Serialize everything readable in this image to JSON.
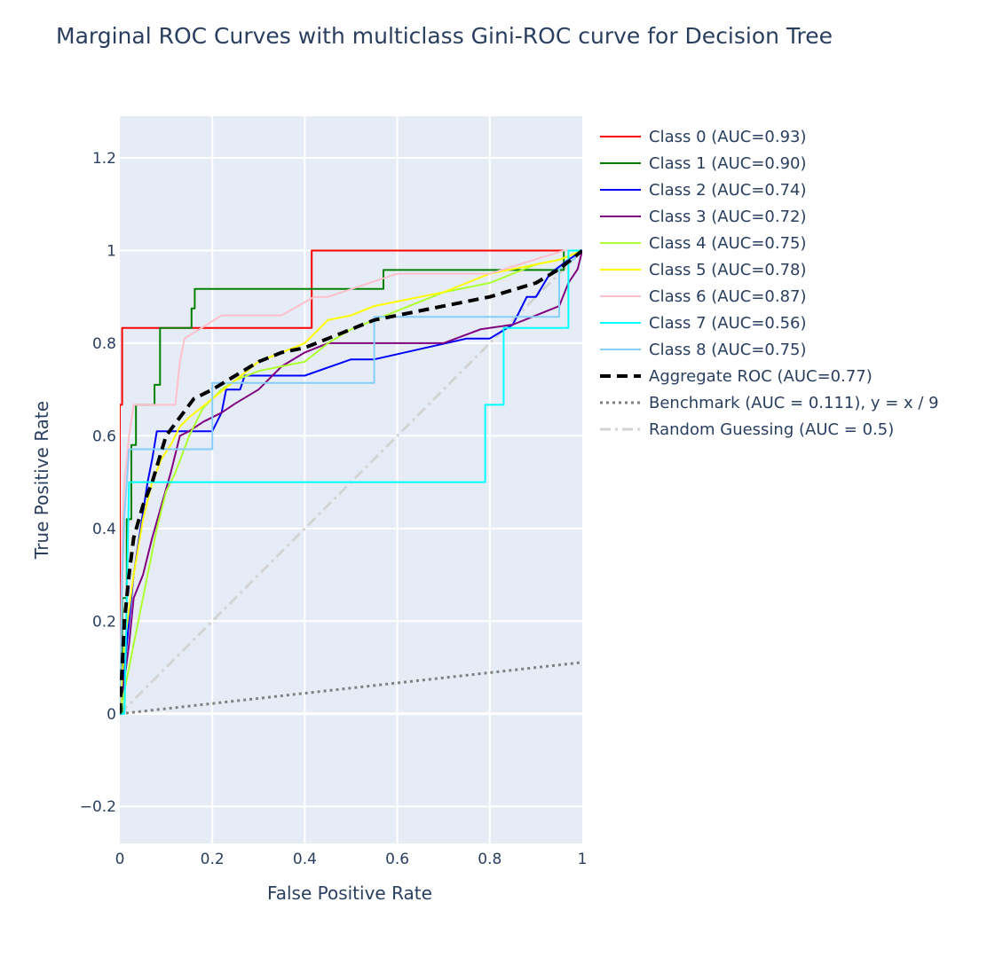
{
  "chart_data": {
    "type": "line",
    "title": "Marginal ROC Curves with multiclass Gini-ROC curve for Decision Tree",
    "xlabel": "False Positive Rate",
    "ylabel": "True Positive Rate",
    "xlim": [
      0,
      1
    ],
    "ylim": [
      -0.28,
      1.29
    ],
    "xticks": [
      0,
      0.2,
      0.4,
      0.6,
      0.8,
      1
    ],
    "xtick_labels": [
      "0",
      "0.2",
      "0.4",
      "0.6",
      "0.8",
      "1"
    ],
    "yticks": [
      -0.2,
      0,
      0.2,
      0.4,
      0.6,
      0.8,
      1,
      1.2
    ],
    "ytick_labels": [
      "−0.2",
      "0",
      "0.2",
      "0.4",
      "0.6",
      "0.8",
      "1",
      "1.2"
    ],
    "grid": true,
    "legend_position": "right",
    "series": [
      {
        "name": "Class 0 (AUC=0.93)",
        "color": "#ff0000",
        "dash": "solid",
        "width": 2,
        "x": [
          0,
          0,
          0.005,
          0.005,
          0.415,
          0.415,
          0.89,
          0.89,
          1
        ],
        "y": [
          0,
          0.667,
          0.667,
          0.833,
          0.833,
          1,
          1,
          1,
          1
        ]
      },
      {
        "name": "Class 1 (AUC=0.90)",
        "color": "#008000",
        "dash": "solid",
        "width": 2,
        "x": [
          0,
          0.005,
          0.005,
          0.015,
          0.015,
          0.025,
          0.025,
          0.035,
          0.035,
          0.075,
          0.075,
          0.087,
          0.087,
          0.155,
          0.155,
          0.162,
          0.162,
          0.57,
          0.57,
          0.96,
          0.96,
          1
        ],
        "y": [
          0,
          0,
          0.25,
          0.25,
          0.42,
          0.42,
          0.58,
          0.58,
          0.667,
          0.667,
          0.71,
          0.71,
          0.833,
          0.833,
          0.875,
          0.875,
          0.917,
          0.917,
          0.958,
          0.958,
          1,
          1
        ]
      },
      {
        "name": "Class 2 (AUC=0.74)",
        "color": "#0000ff",
        "dash": "solid",
        "width": 2,
        "x": [
          0,
          0.01,
          0.02,
          0.03,
          0.045,
          0.06,
          0.07,
          0.08,
          0.1,
          0.15,
          0.2,
          0.22,
          0.23,
          0.26,
          0.27,
          0.4,
          0.5,
          0.55,
          0.75,
          0.8,
          0.85,
          0.88,
          0.9,
          0.93,
          0.97,
          1
        ],
        "y": [
          0,
          0.1,
          0.2,
          0.3,
          0.4,
          0.5,
          0.55,
          0.61,
          0.61,
          0.61,
          0.61,
          0.65,
          0.7,
          0.7,
          0.73,
          0.73,
          0.765,
          0.765,
          0.81,
          0.81,
          0.84,
          0.9,
          0.9,
          0.95,
          0.98,
          1
        ]
      },
      {
        "name": "Class 3 (AUC=0.72)",
        "color": "#800080",
        "dash": "solid",
        "width": 2,
        "x": [
          0,
          0.02,
          0.03,
          0.05,
          0.07,
          0.09,
          0.11,
          0.13,
          0.15,
          0.18,
          0.22,
          0.25,
          0.3,
          0.35,
          0.4,
          0.45,
          0.5,
          0.54,
          0.6,
          0.7,
          0.78,
          0.85,
          0.9,
          0.95,
          0.97,
          0.99,
          1
        ],
        "y": [
          0,
          0.15,
          0.25,
          0.3,
          0.38,
          0.45,
          0.52,
          0.6,
          0.61,
          0.63,
          0.65,
          0.67,
          0.7,
          0.75,
          0.78,
          0.8,
          0.8,
          0.8,
          0.8,
          0.8,
          0.83,
          0.84,
          0.86,
          0.88,
          0.93,
          0.96,
          1
        ]
      },
      {
        "name": "Class 4 (AUC=0.75)",
        "color": "#adff2f",
        "dash": "solid",
        "width": 2,
        "x": [
          0,
          0.02,
          0.04,
          0.06,
          0.08,
          0.1,
          0.12,
          0.15,
          0.18,
          0.22,
          0.25,
          0.3,
          0.35,
          0.4,
          0.45,
          0.5,
          0.55,
          0.6,
          0.65,
          0.7,
          0.75,
          0.8,
          0.85,
          0.9,
          0.95,
          1
        ],
        "y": [
          0,
          0.1,
          0.2,
          0.3,
          0.4,
          0.48,
          0.52,
          0.6,
          0.66,
          0.7,
          0.72,
          0.74,
          0.75,
          0.76,
          0.8,
          0.83,
          0.85,
          0.87,
          0.89,
          0.91,
          0.92,
          0.93,
          0.95,
          0.97,
          0.98,
          1
        ]
      },
      {
        "name": "Class 5 (AUC=0.78)",
        "color": "#ffff00",
        "dash": "solid",
        "width": 2,
        "x": [
          0,
          0.01,
          0.03,
          0.05,
          0.07,
          0.09,
          0.11,
          0.13,
          0.15,
          0.2,
          0.25,
          0.3,
          0.35,
          0.4,
          0.45,
          0.5,
          0.55,
          0.6,
          0.65,
          0.7,
          0.75,
          0.8,
          0.85,
          0.9,
          0.95,
          1
        ],
        "y": [
          0,
          0.15,
          0.3,
          0.42,
          0.5,
          0.55,
          0.58,
          0.62,
          0.64,
          0.68,
          0.72,
          0.76,
          0.78,
          0.8,
          0.85,
          0.86,
          0.88,
          0.89,
          0.9,
          0.91,
          0.93,
          0.95,
          0.96,
          0.97,
          0.98,
          1
        ]
      },
      {
        "name": "Class 6 (AUC=0.87)",
        "color": "#ffc0cb",
        "dash": "solid",
        "width": 2,
        "x": [
          0,
          0.005,
          0.01,
          0.02,
          0.03,
          0.06,
          0.12,
          0.13,
          0.14,
          0.22,
          0.3,
          0.35,
          0.42,
          0.45,
          0.6,
          0.65,
          0.8,
          0.96,
          1
        ],
        "y": [
          0,
          0.4,
          0.5,
          0.6,
          0.667,
          0.667,
          0.667,
          0.76,
          0.81,
          0.86,
          0.86,
          0.86,
          0.9,
          0.9,
          0.95,
          0.95,
          0.95,
          1,
          1
        ]
      },
      {
        "name": "Class 7 (AUC=0.56)",
        "color": "#00ffff",
        "dash": "solid",
        "width": 2,
        "x": [
          0,
          0.01,
          0.02,
          0.02,
          0.79,
          0.79,
          0.83,
          0.83,
          0.97,
          0.97,
          1
        ],
        "y": [
          0,
          0,
          0.5,
          0.5,
          0.5,
          0.667,
          0.667,
          0.833,
          0.833,
          1,
          1
        ]
      },
      {
        "name": "Class 8 (AUC=0.75)",
        "color": "#87cefa",
        "dash": "solid",
        "width": 2,
        "x": [
          0,
          0.005,
          0.01,
          0.015,
          0.02,
          0.2,
          0.2,
          0.55,
          0.55,
          0.95,
          0.95,
          0.98,
          1
        ],
        "y": [
          0,
          0.29,
          0.43,
          0.5,
          0.571,
          0.571,
          0.714,
          0.714,
          0.857,
          0.857,
          0.96,
          0.98,
          1
        ]
      },
      {
        "name": "Aggregate ROC (AUC=0.77)",
        "color": "#000000",
        "dash": "dash",
        "width": 4,
        "x": [
          0,
          0.01,
          0.02,
          0.03,
          0.05,
          0.07,
          0.1,
          0.13,
          0.16,
          0.2,
          0.25,
          0.3,
          0.35,
          0.4,
          0.45,
          0.5,
          0.55,
          0.6,
          0.7,
          0.8,
          0.9,
          0.95,
          1
        ],
        "y": [
          0,
          0.2,
          0.3,
          0.38,
          0.45,
          0.5,
          0.6,
          0.64,
          0.68,
          0.7,
          0.73,
          0.76,
          0.78,
          0.79,
          0.81,
          0.83,
          0.85,
          0.86,
          0.88,
          0.9,
          0.93,
          0.96,
          1
        ]
      },
      {
        "name": "Benchmark (AUC = 0.111), y = x / 9",
        "color": "#808080",
        "dash": "dot",
        "width": 3,
        "x": [
          0,
          1
        ],
        "y": [
          0,
          0.111
        ]
      },
      {
        "name": "Random Guessing (AUC = 0.5)",
        "color": "#d3d3d3",
        "dash": "dashdot",
        "width": 3,
        "x": [
          0,
          1
        ],
        "y": [
          0,
          1
        ]
      }
    ]
  }
}
